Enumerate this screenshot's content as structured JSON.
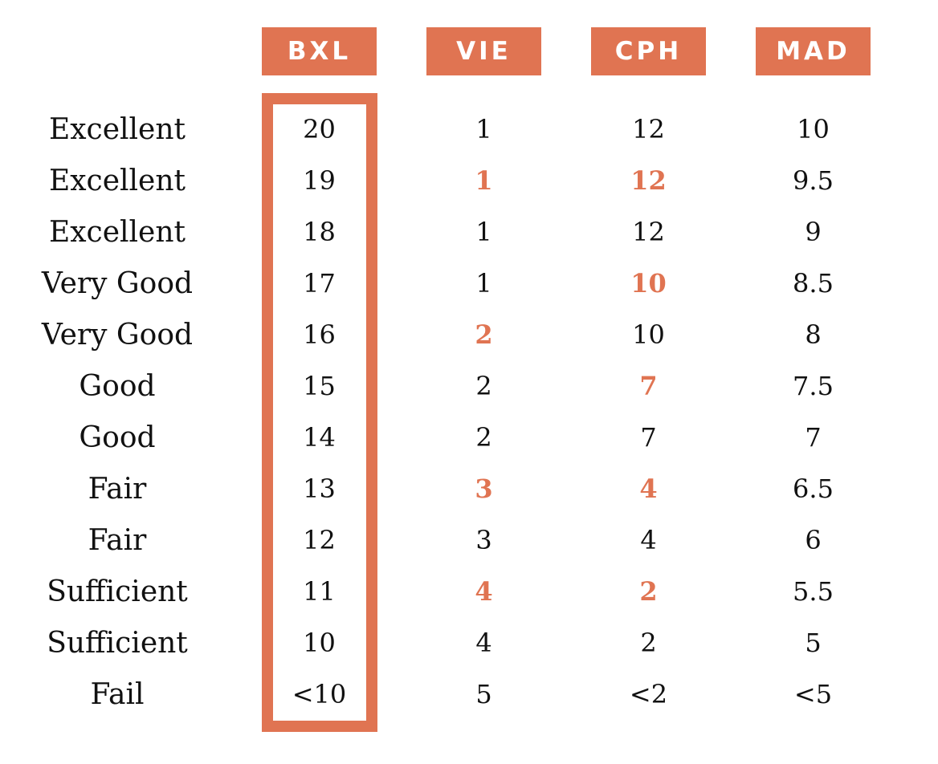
{
  "colors": {
    "accent": "#e07452",
    "text": "#111111",
    "background": "#ffffff"
  },
  "columns": [
    {
      "header": "BXL",
      "values": [
        "20",
        "19",
        "18",
        "17",
        "16",
        "15",
        "14",
        "13",
        "12",
        "11",
        "10",
        "<10"
      ],
      "highlight": []
    },
    {
      "header": "VIE",
      "values": [
        "1",
        "1",
        "1",
        "1",
        "2",
        "2",
        "2",
        "3",
        "3",
        "4",
        "4",
        "5"
      ],
      "highlight": [
        1,
        4,
        7,
        9
      ]
    },
    {
      "header": "CPH",
      "values": [
        "12",
        "12",
        "12",
        "10",
        "10",
        "7",
        "7",
        "4",
        "4",
        "2",
        "2",
        "<2"
      ],
      "highlight": [
        1,
        3,
        5,
        7,
        9
      ]
    },
    {
      "header": "MAD",
      "values": [
        "10",
        "9.5",
        "9",
        "8.5",
        "8",
        "7.5",
        "7",
        "6.5",
        "6",
        "5.5",
        "5",
        "<5"
      ],
      "highlight": []
    }
  ],
  "row_labels": [
    "Excellent",
    "Excellent",
    "Excellent",
    "Very Good",
    "Very Good",
    "Good",
    "Good",
    "Fair",
    "Fair",
    "Sufficient",
    "Sufficient",
    "Fail"
  ],
  "highlighted_column": "BXL"
}
